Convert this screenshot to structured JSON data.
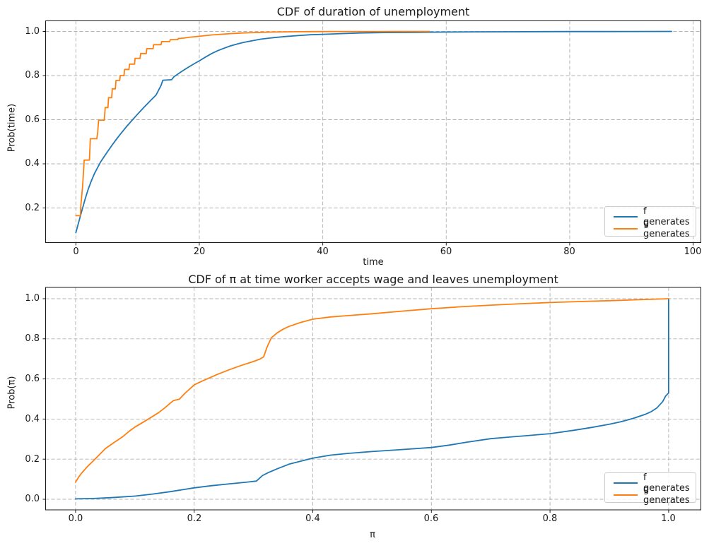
{
  "figure": {
    "background": "#ffffff",
    "grid_color": "#b0b0b0",
    "spine_color": "#1a1a1a",
    "series_colors": {
      "f": "#1f77b4",
      "g": "#ff7f0e"
    }
  },
  "chart_data": [
    {
      "type": "line",
      "title": "CDF of duration of unemployment",
      "xlabel": "time",
      "ylabel": "Prob(time)",
      "xlim": [
        -4.9,
        101.3
      ],
      "ylim": [
        0.043,
        1.046
      ],
      "grid": true,
      "legend_position": "lower right",
      "x_ticks": [
        0,
        20,
        40,
        60,
        80,
        100
      ],
      "x_tick_labels": [
        "0",
        "20",
        "40",
        "60",
        "80",
        "100"
      ],
      "y_ticks": [
        0.2,
        0.4,
        0.6,
        0.8,
        1.0
      ],
      "y_tick_labels": [
        "0.2",
        "0.4",
        "0.6",
        "0.8",
        "1.0"
      ],
      "series": [
        {
          "name": "f generates",
          "color": "#1f77b4",
          "points": [
            [
              0,
              0.088
            ],
            [
              0.5,
              0.14
            ],
            [
              1,
              0.19
            ],
            [
              1.5,
              0.24
            ],
            [
              2,
              0.285
            ],
            [
              2.5,
              0.322
            ],
            [
              3,
              0.355
            ],
            [
              4,
              0.408
            ],
            [
              5,
              0.45
            ],
            [
              6,
              0.49
            ],
            [
              7,
              0.527
            ],
            [
              8,
              0.562
            ],
            [
              9,
              0.594
            ],
            [
              10,
              0.625
            ],
            [
              11,
              0.655
            ],
            [
              12,
              0.684
            ],
            [
              13,
              0.712
            ],
            [
              13.8,
              0.755
            ],
            [
              14.1,
              0.779
            ],
            [
              15.5,
              0.781
            ],
            [
              15.9,
              0.795
            ],
            [
              17,
              0.816
            ],
            [
              18,
              0.834
            ],
            [
              19,
              0.851
            ],
            [
              20,
              0.867
            ],
            [
              21,
              0.884
            ],
            [
              22,
              0.9
            ],
            [
              23,
              0.913
            ],
            [
              24,
              0.924
            ],
            [
              25,
              0.934
            ],
            [
              26,
              0.942
            ],
            [
              27,
              0.949
            ],
            [
              28,
              0.955
            ],
            [
              29,
              0.96
            ],
            [
              30,
              0.965
            ],
            [
              32,
              0.972
            ],
            [
              34,
              0.977
            ],
            [
              36,
              0.981
            ],
            [
              38,
              0.985
            ],
            [
              40,
              0.987
            ],
            [
              43,
              0.99
            ],
            [
              46,
              0.993
            ],
            [
              50,
              0.995
            ],
            [
              55,
              0.996
            ],
            [
              60,
              0.997
            ],
            [
              65,
              0.998
            ],
            [
              70,
              0.9985
            ],
            [
              75,
              0.999
            ],
            [
              80,
              0.9993
            ],
            [
              85,
              0.9995
            ],
            [
              90,
              0.9997
            ],
            [
              96.5,
              1.0
            ]
          ]
        },
        {
          "name": "g generates",
          "color": "#ff7f0e",
          "points": [
            [
              0,
              0.165
            ],
            [
              0.75,
              0.165
            ],
            [
              0.8,
              0.21
            ],
            [
              0.9,
              0.24
            ],
            [
              1.0,
              0.27
            ],
            [
              1.1,
              0.3
            ],
            [
              1.35,
              0.417
            ],
            [
              2.2,
              0.417
            ],
            [
              2.35,
              0.514
            ],
            [
              3.4,
              0.514
            ],
            [
              3.55,
              0.545
            ],
            [
              3.6,
              0.565
            ],
            [
              3.7,
              0.598
            ],
            [
              4.6,
              0.598
            ],
            [
              4.7,
              0.632
            ],
            [
              4.75,
              0.655
            ],
            [
              5.2,
              0.655
            ],
            [
              5.3,
              0.7
            ],
            [
              5.8,
              0.7
            ],
            [
              5.9,
              0.74
            ],
            [
              6.4,
              0.74
            ],
            [
              6.5,
              0.778
            ],
            [
              7.1,
              0.778
            ],
            [
              7.2,
              0.8
            ],
            [
              7.8,
              0.8
            ],
            [
              7.9,
              0.828
            ],
            [
              8.6,
              0.828
            ],
            [
              8.7,
              0.852
            ],
            [
              9.5,
              0.852
            ],
            [
              9.6,
              0.878
            ],
            [
              10.4,
              0.878
            ],
            [
              10.5,
              0.9
            ],
            [
              11.4,
              0.9
            ],
            [
              11.5,
              0.922
            ],
            [
              12.5,
              0.922
            ],
            [
              12.6,
              0.94
            ],
            [
              13.8,
              0.94
            ],
            [
              13.9,
              0.954
            ],
            [
              15.2,
              0.954
            ],
            [
              15.3,
              0.963
            ],
            [
              16.5,
              0.963
            ],
            [
              16.6,
              0.968
            ],
            [
              17.5,
              0.97
            ],
            [
              18.5,
              0.974
            ],
            [
              20,
              0.978
            ],
            [
              21,
              0.981
            ],
            [
              22,
              0.984
            ],
            [
              23,
              0.986
            ],
            [
              24,
              0.988
            ],
            [
              25,
              0.99
            ],
            [
              26,
              0.9915
            ],
            [
              27,
              0.993
            ],
            [
              28,
              0.994
            ],
            [
              29,
              0.995
            ],
            [
              30,
              0.996
            ],
            [
              32,
              0.9972
            ],
            [
              34,
              0.998
            ],
            [
              36,
              0.9986
            ],
            [
              38,
              0.999
            ],
            [
              40,
              0.9993
            ],
            [
              44,
              0.9996
            ],
            [
              48,
              0.9998
            ],
            [
              52,
              0.9999
            ],
            [
              57.3,
              1.0
            ]
          ]
        }
      ]
    },
    {
      "type": "line",
      "title": "CDF of π at time worker accepts wage and leaves unemployment",
      "xlabel": "π",
      "ylabel": "Prob(π)",
      "xlim": [
        -0.05,
        1.05
      ],
      "ylim": [
        -0.05,
        1.05
      ],
      "grid": true,
      "legend_position": "lower right",
      "x_ticks": [
        0,
        0.2,
        0.4,
        0.6,
        0.8,
        1.0
      ],
      "x_tick_labels": [
        "0.0",
        "0.2",
        "0.4",
        "0.6",
        "0.8",
        "1.0"
      ],
      "y_ticks": [
        0,
        0.2,
        0.4,
        0.6,
        0.8,
        1.0
      ],
      "y_tick_labels": [
        "0.0",
        "0.2",
        "0.4",
        "0.6",
        "0.8",
        "1.0"
      ],
      "series": [
        {
          "name": "f generates",
          "color": "#1f77b4",
          "points": [
            [
              0,
              0.002
            ],
            [
              0.03,
              0.004
            ],
            [
              0.06,
              0.008
            ],
            [
              0.1,
              0.016
            ],
            [
              0.13,
              0.026
            ],
            [
              0.16,
              0.038
            ],
            [
              0.2,
              0.057
            ],
            [
              0.23,
              0.068
            ],
            [
              0.26,
              0.077
            ],
            [
              0.29,
              0.086
            ],
            [
              0.305,
              0.091
            ],
            [
              0.315,
              0.118
            ],
            [
              0.325,
              0.133
            ],
            [
              0.34,
              0.152
            ],
            [
              0.36,
              0.175
            ],
            [
              0.38,
              0.19
            ],
            [
              0.4,
              0.205
            ],
            [
              0.43,
              0.22
            ],
            [
              0.46,
              0.229
            ],
            [
              0.5,
              0.238
            ],
            [
              0.55,
              0.248
            ],
            [
              0.6,
              0.258
            ],
            [
              0.63,
              0.27
            ],
            [
              0.66,
              0.285
            ],
            [
              0.7,
              0.302
            ],
            [
              0.73,
              0.31
            ],
            [
              0.76,
              0.317
            ],
            [
              0.8,
              0.327
            ],
            [
              0.84,
              0.344
            ],
            [
              0.87,
              0.358
            ],
            [
              0.9,
              0.374
            ],
            [
              0.92,
              0.387
            ],
            [
              0.94,
              0.403
            ],
            [
              0.96,
              0.423
            ],
            [
              0.97,
              0.436
            ],
            [
              0.98,
              0.455
            ],
            [
              0.99,
              0.487
            ],
            [
              0.995,
              0.515
            ],
            [
              1.0,
              0.53
            ],
            [
              1.0,
              1.0
            ]
          ]
        },
        {
          "name": "g generates",
          "color": "#ff7f0e",
          "points": [
            [
              0,
              0.085
            ],
            [
              0.005,
              0.11
            ],
            [
              0.01,
              0.13
            ],
            [
              0.02,
              0.163
            ],
            [
              0.03,
              0.192
            ],
            [
              0.04,
              0.222
            ],
            [
              0.05,
              0.252
            ],
            [
              0.06,
              0.273
            ],
            [
              0.07,
              0.293
            ],
            [
              0.08,
              0.313
            ],
            [
              0.09,
              0.338
            ],
            [
              0.1,
              0.36
            ],
            [
              0.12,
              0.395
            ],
            [
              0.14,
              0.432
            ],
            [
              0.15,
              0.455
            ],
            [
              0.16,
              0.48
            ],
            [
              0.165,
              0.492
            ],
            [
              0.175,
              0.499
            ],
            [
              0.185,
              0.53
            ],
            [
              0.2,
              0.57
            ],
            [
              0.21,
              0.585
            ],
            [
              0.22,
              0.598
            ],
            [
              0.24,
              0.624
            ],
            [
              0.26,
              0.647
            ],
            [
              0.28,
              0.668
            ],
            [
              0.3,
              0.687
            ],
            [
              0.31,
              0.698
            ],
            [
              0.317,
              0.71
            ],
            [
              0.323,
              0.76
            ],
            [
              0.33,
              0.805
            ],
            [
              0.34,
              0.83
            ],
            [
              0.35,
              0.848
            ],
            [
              0.36,
              0.862
            ],
            [
              0.38,
              0.882
            ],
            [
              0.4,
              0.898
            ],
            [
              0.43,
              0.909
            ],
            [
              0.46,
              0.916
            ],
            [
              0.5,
              0.925
            ],
            [
              0.55,
              0.938
            ],
            [
              0.6,
              0.95
            ],
            [
              0.65,
              0.96
            ],
            [
              0.7,
              0.968
            ],
            [
              0.75,
              0.975
            ],
            [
              0.8,
              0.981
            ],
            [
              0.85,
              0.986
            ],
            [
              0.9,
              0.99
            ],
            [
              0.95,
              0.995
            ],
            [
              1.0,
              1.0
            ]
          ]
        }
      ]
    }
  ]
}
